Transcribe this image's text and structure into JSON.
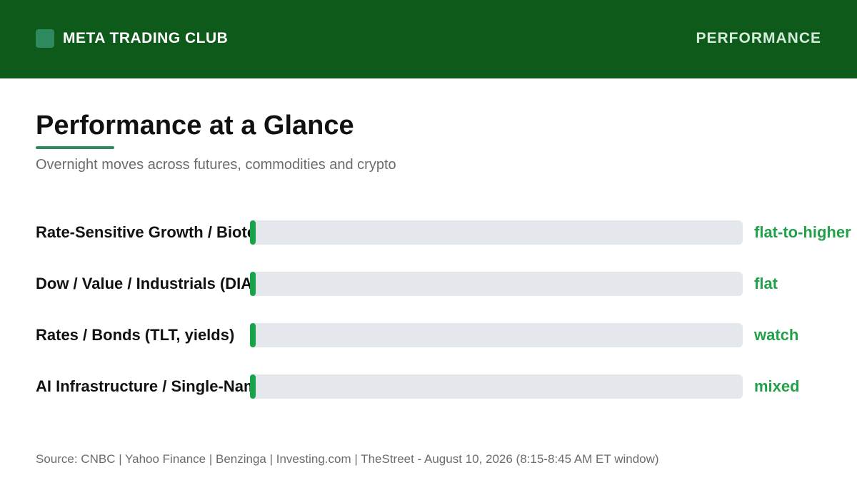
{
  "header": {
    "brand": "META TRADING CLUB",
    "nav_label": "PERFORMANCE"
  },
  "colors": {
    "brand": "#0e5a1a",
    "accent": "#2d8a5e",
    "positive": "#16a34a",
    "track": "#e4e7eb"
  },
  "chart_data": {
    "type": "bar",
    "title": "Performance at a Glance",
    "subtitle": "Overnight moves across futures, commodities and crypto",
    "categories": [
      "Rate-Sensitive Growth / Biotech",
      "Dow / Value / Industrials (DIA)",
      "Rates / Bonds (TLT, yields)",
      "AI Infrastructure / Single-Name"
    ],
    "values": [
      0,
      0,
      0,
      0
    ],
    "status_labels": [
      "flat-to-higher",
      "flat",
      "watch",
      "mixed"
    ],
    "xlim": [
      0,
      1
    ],
    "grid": false
  },
  "footer": {
    "source": "Source: CNBC | Yahoo Finance | Benzinga | Investing.com | TheStreet - August 10, 2026 (8:15-8:45 AM ET window)"
  }
}
